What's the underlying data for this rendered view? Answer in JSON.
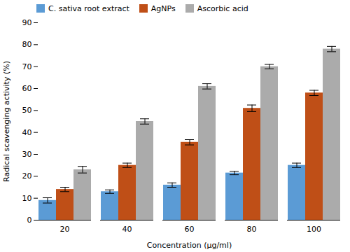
{
  "chart_data": {
    "type": "bar",
    "categories": [
      "20",
      "40",
      "60",
      "80",
      "100"
    ],
    "series": [
      {
        "name": "C. sativa root extract",
        "color": "#5B9BD5",
        "values": [
          9.0,
          13.0,
          16.0,
          21.5,
          25.0
        ],
        "errors": [
          1.2,
          0.8,
          1.0,
          0.8,
          1.0
        ]
      },
      {
        "name": "AgNPs",
        "color": "#BF4F17",
        "values": [
          14.0,
          25.0,
          35.5,
          51.0,
          58.0
        ],
        "errors": [
          1.0,
          1.0,
          1.2,
          1.5,
          1.2
        ]
      },
      {
        "name": "Ascorbic acid",
        "color": "#ABABAB",
        "values": [
          23.0,
          45.0,
          61.0,
          70.0,
          78.0
        ],
        "errors": [
          1.5,
          1.2,
          1.2,
          1.0,
          1.2
        ]
      }
    ],
    "xlabel": "Concentration (μg/ml)",
    "ylabel": "Radical scavenging activity (%)",
    "ylim": [
      0,
      90
    ],
    "yticks": [
      0,
      10,
      20,
      30,
      40,
      50,
      60,
      70,
      80,
      90
    ],
    "grid": false,
    "legend": "upper left"
  }
}
